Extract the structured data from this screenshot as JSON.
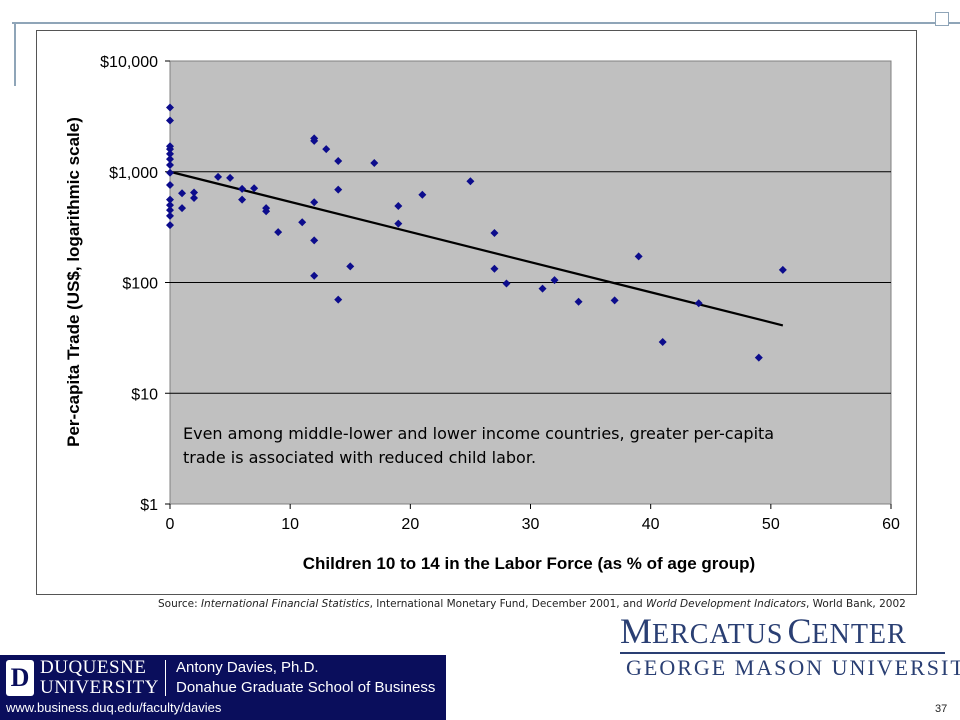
{
  "chart_data": {
    "type": "scatter",
    "title": "",
    "xlabel": "Children 10 to 14 in the Labor Force (as % of age group)",
    "ylabel": "Per-capita Trade (US$, logarithmic scale)",
    "x_ticks": [
      "0",
      "10",
      "20",
      "30",
      "40",
      "50",
      "60"
    ],
    "y_ticks": [
      "$1",
      "$10",
      "$100",
      "$1,000",
      "$10,000"
    ],
    "xlim": [
      0,
      60
    ],
    "ylim": [
      1,
      10000
    ],
    "y_scale": "log",
    "grid": "horizontal",
    "plot_background": "#c0c0c0",
    "marker_color": "#0c0c8c",
    "trendline_color": "#000000",
    "annotation": "Even among middle-lower and lower income countries, greater per-capita trade is associated with reduced child labor.",
    "points": [
      {
        "x": 0,
        "y": 3800
      },
      {
        "x": 0,
        "y": 2900
      },
      {
        "x": 0,
        "y": 1700
      },
      {
        "x": 0,
        "y": 1600
      },
      {
        "x": 0,
        "y": 1450
      },
      {
        "x": 0,
        "y": 1300
      },
      {
        "x": 0,
        "y": 1150
      },
      {
        "x": 0,
        "y": 980
      },
      {
        "x": 0,
        "y": 760
      },
      {
        "x": 0,
        "y": 560
      },
      {
        "x": 0,
        "y": 500
      },
      {
        "x": 0,
        "y": 450
      },
      {
        "x": 0,
        "y": 400
      },
      {
        "x": 0,
        "y": 330
      },
      {
        "x": 1,
        "y": 640
      },
      {
        "x": 1,
        "y": 470
      },
      {
        "x": 2,
        "y": 650
      },
      {
        "x": 2,
        "y": 580
      },
      {
        "x": 4,
        "y": 900
      },
      {
        "x": 5,
        "y": 880
      },
      {
        "x": 6,
        "y": 700
      },
      {
        "x": 6,
        "y": 560
      },
      {
        "x": 7,
        "y": 710
      },
      {
        "x": 8,
        "y": 470
      },
      {
        "x": 8,
        "y": 440
      },
      {
        "x": 9,
        "y": 285
      },
      {
        "x": 11,
        "y": 350
      },
      {
        "x": 12,
        "y": 2000
      },
      {
        "x": 12,
        "y": 1900
      },
      {
        "x": 12,
        "y": 530
      },
      {
        "x": 12,
        "y": 240
      },
      {
        "x": 12,
        "y": 115
      },
      {
        "x": 13,
        "y": 1600
      },
      {
        "x": 14,
        "y": 1250
      },
      {
        "x": 14,
        "y": 690
      },
      {
        "x": 14,
        "y": 70
      },
      {
        "x": 15,
        "y": 140
      },
      {
        "x": 17,
        "y": 1200
      },
      {
        "x": 19,
        "y": 490
      },
      {
        "x": 19,
        "y": 340
      },
      {
        "x": 21,
        "y": 620
      },
      {
        "x": 25,
        "y": 820
      },
      {
        "x": 27,
        "y": 280
      },
      {
        "x": 27,
        "y": 133
      },
      {
        "x": 28,
        "y": 98
      },
      {
        "x": 31,
        "y": 88
      },
      {
        "x": 32,
        "y": 105
      },
      {
        "x": 34,
        "y": 67
      },
      {
        "x": 37,
        "y": 69
      },
      {
        "x": 39,
        "y": 172
      },
      {
        "x": 41,
        "y": 29
      },
      {
        "x": 44,
        "y": 65
      },
      {
        "x": 49,
        "y": 21
      },
      {
        "x": 51,
        "y": 130
      }
    ],
    "trendline": {
      "x": [
        0,
        51
      ],
      "y": [
        1000,
        41
      ]
    }
  },
  "source": {
    "prefix": "Source: ",
    "ifs_title": "International Financial Statistics",
    "ifs_rest": ", International Monetary Fund, December 2001, and ",
    "wdi_title": "World Development Indicators",
    "wdi_rest": ", World Bank, 2002"
  },
  "mercatus": {
    "title_m": "M",
    "title_ercatus": "ERCATUS",
    "title_c": "C",
    "title_enter": "ENTER",
    "subtitle": "GEORGE MASON UNIVERSITY"
  },
  "duquesne": {
    "logo_letter": "D",
    "name_line1": "DUQUESNE",
    "name_line2": "UNIVERSITY",
    "person": "Antony Davies, Ph.D.",
    "school": "Donahue Graduate School of Business",
    "url": "www.business.duq.edu/faculty/davies"
  },
  "page_number": "37"
}
